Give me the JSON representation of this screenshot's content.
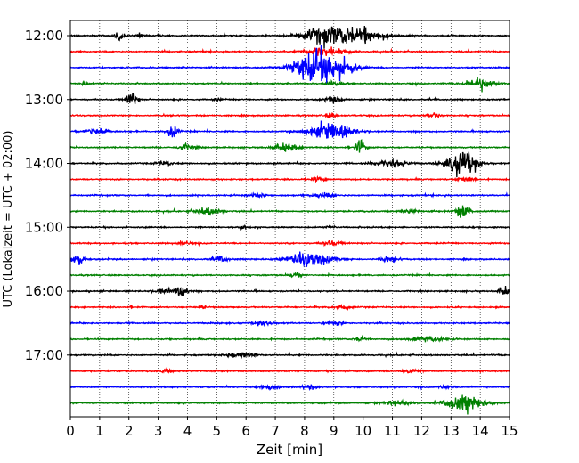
{
  "chart_data": {
    "type": "line",
    "subtype": "helicorder",
    "xlabel": "Zeit  [min]",
    "ylabel": "UTC (Lokalzeit = UTC + 02:00)",
    "xlim": [
      0,
      15
    ],
    "x_ticks": [
      "0",
      "1",
      "2",
      "3",
      "4",
      "5",
      "6",
      "7",
      "8",
      "9",
      "10",
      "11",
      "12",
      "13",
      "14",
      "15"
    ],
    "y_tick_labels": [
      "12:00",
      "13:00",
      "14:00",
      "15:00",
      "16:00",
      "17:00"
    ],
    "row_minutes": 15,
    "rows_per_hour": 4,
    "trace_colors": [
      "#000000",
      "#ff0000",
      "#0000ff",
      "#008000"
    ],
    "grid": "vertical dotted at each minute",
    "rows": [
      {
        "label": "12:00",
        "events": [
          [
            1.7,
            0.55,
            0.12
          ],
          [
            8.6,
            0.9,
            0.5
          ],
          [
            9.8,
            1.0,
            0.6
          ],
          [
            2.4,
            0.3,
            0.1
          ]
        ]
      },
      {
        "label": "",
        "events": [
          [
            8.4,
            0.5,
            0.3
          ],
          [
            9.1,
            0.35,
            0.3
          ]
        ]
      },
      {
        "label": "",
        "events": [
          [
            8.6,
            1.8,
            0.55
          ],
          [
            8.0,
            0.6,
            0.35
          ],
          [
            9.5,
            0.4,
            0.25
          ]
        ]
      },
      {
        "label": "",
        "events": [
          [
            14.0,
            0.75,
            0.3
          ],
          [
            0.5,
            0.2,
            0.1
          ],
          [
            9.0,
            0.3,
            0.2
          ]
        ]
      },
      {
        "label": "13:00",
        "events": [
          [
            2.1,
            0.9,
            0.12
          ],
          [
            9.0,
            0.35,
            0.2
          ],
          [
            5.0,
            0.15,
            0.1
          ]
        ]
      },
      {
        "label": "",
        "events": [
          [
            12.4,
            0.3,
            0.15
          ],
          [
            8.9,
            0.25,
            0.15
          ]
        ]
      },
      {
        "label": "",
        "events": [
          [
            0.9,
            0.45,
            0.25
          ],
          [
            3.5,
            0.9,
            0.12
          ],
          [
            8.9,
            1.0,
            0.5
          ]
        ]
      },
      {
        "label": "",
        "events": [
          [
            9.9,
            0.9,
            0.12
          ],
          [
            7.4,
            0.45,
            0.3
          ],
          [
            4.0,
            0.35,
            0.2
          ]
        ]
      },
      {
        "label": "14:00",
        "events": [
          [
            13.4,
            1.55,
            0.35
          ],
          [
            11.0,
            0.4,
            0.4
          ],
          [
            3.2,
            0.25,
            0.2
          ]
        ]
      },
      {
        "label": "",
        "events": [
          [
            13.5,
            0.3,
            0.2
          ],
          [
            8.5,
            0.2,
            0.2
          ]
        ]
      },
      {
        "label": "",
        "events": [
          [
            8.6,
            0.25,
            0.3
          ],
          [
            6.4,
            0.2,
            0.2
          ]
        ]
      },
      {
        "label": "",
        "events": [
          [
            13.4,
            0.85,
            0.15
          ],
          [
            4.7,
            0.45,
            0.3
          ],
          [
            11.6,
            0.2,
            0.2
          ]
        ]
      },
      {
        "label": "15:00",
        "events": [
          [
            5.9,
            0.3,
            0.1
          ],
          [
            8.9,
            0.2,
            0.1
          ]
        ]
      },
      {
        "label": "",
        "events": [
          [
            8.9,
            0.3,
            0.2
          ],
          [
            3.9,
            0.2,
            0.15
          ]
        ]
      },
      {
        "label": "",
        "events": [
          [
            0.25,
            0.8,
            0.15
          ],
          [
            8.2,
            0.85,
            0.5
          ],
          [
            5.1,
            0.3,
            0.2
          ],
          [
            10.9,
            0.3,
            0.2
          ]
        ]
      },
      {
        "label": "",
        "events": [
          [
            7.7,
            0.2,
            0.2
          ]
        ]
      },
      {
        "label": "16:00",
        "events": [
          [
            3.8,
            0.9,
            0.12
          ],
          [
            14.8,
            0.6,
            0.1
          ],
          [
            3.2,
            0.3,
            0.2
          ]
        ]
      },
      {
        "label": "",
        "events": [
          [
            9.3,
            0.2,
            0.2
          ],
          [
            4.5,
            0.15,
            0.1
          ]
        ]
      },
      {
        "label": "",
        "events": [
          [
            6.6,
            0.3,
            0.2
          ],
          [
            9.0,
            0.25,
            0.2
          ]
        ]
      },
      {
        "label": "",
        "events": [
          [
            9.9,
            0.35,
            0.12
          ],
          [
            12.2,
            0.3,
            0.4
          ]
        ]
      },
      {
        "label": "17:00",
        "events": [
          [
            5.8,
            0.35,
            0.3
          ]
        ]
      },
      {
        "label": "",
        "events": [
          [
            3.3,
            0.3,
            0.12
          ],
          [
            11.6,
            0.3,
            0.2
          ]
        ]
      },
      {
        "label": "",
        "events": [
          [
            6.8,
            0.35,
            0.2
          ],
          [
            8.2,
            0.25,
            0.2
          ],
          [
            12.8,
            0.2,
            0.15
          ]
        ]
      },
      {
        "label": "",
        "events": [
          [
            13.5,
            1.0,
            0.45
          ],
          [
            11.2,
            0.3,
            0.3
          ]
        ]
      }
    ]
  }
}
